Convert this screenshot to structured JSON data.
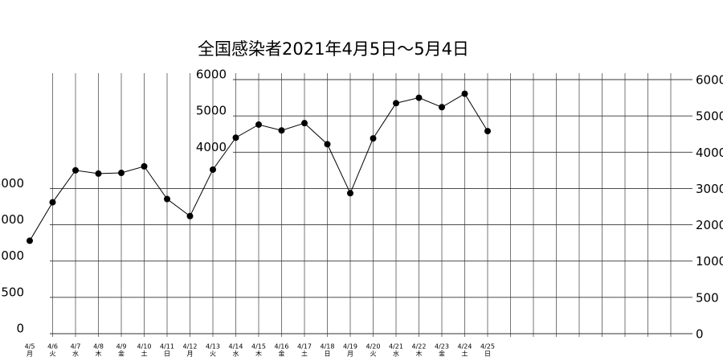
{
  "chart_data": {
    "type": "line",
    "title": "全国感染者2021年4月5日～5月4日",
    "categories": [
      "4/5",
      "4/6",
      "4/7",
      "4/8",
      "4/9",
      "4/10",
      "4/11",
      "4/12",
      "4/13",
      "4/14",
      "4/15",
      "4/16",
      "4/17",
      "4/18",
      "4/19",
      "4/20",
      "4/21",
      "4/22",
      "4/23",
      "4/24",
      "4/25"
    ],
    "weekdays": [
      "月",
      "火",
      "水",
      "木",
      "金",
      "土",
      "日",
      "月",
      "火",
      "水",
      "木",
      "金",
      "土",
      "日",
      "月",
      "火",
      "水",
      "木",
      "金",
      "土",
      "日"
    ],
    "series": [
      {
        "name": "全国感染者",
        "color": "#000000",
        "values": [
          1560,
          2620,
          3500,
          3410,
          3430,
          3610,
          2710,
          2240,
          3520,
          4400,
          4760,
          4600,
          4800,
          4220,
          2870,
          4380,
          5350,
          5500,
          5240,
          5610,
          4580
        ]
      }
    ],
    "ylim": [
      0,
      6000
    ],
    "yticks": [
      0,
      500,
      1000,
      2000,
      3000,
      4000,
      5000,
      6000
    ],
    "grid": true
  }
}
